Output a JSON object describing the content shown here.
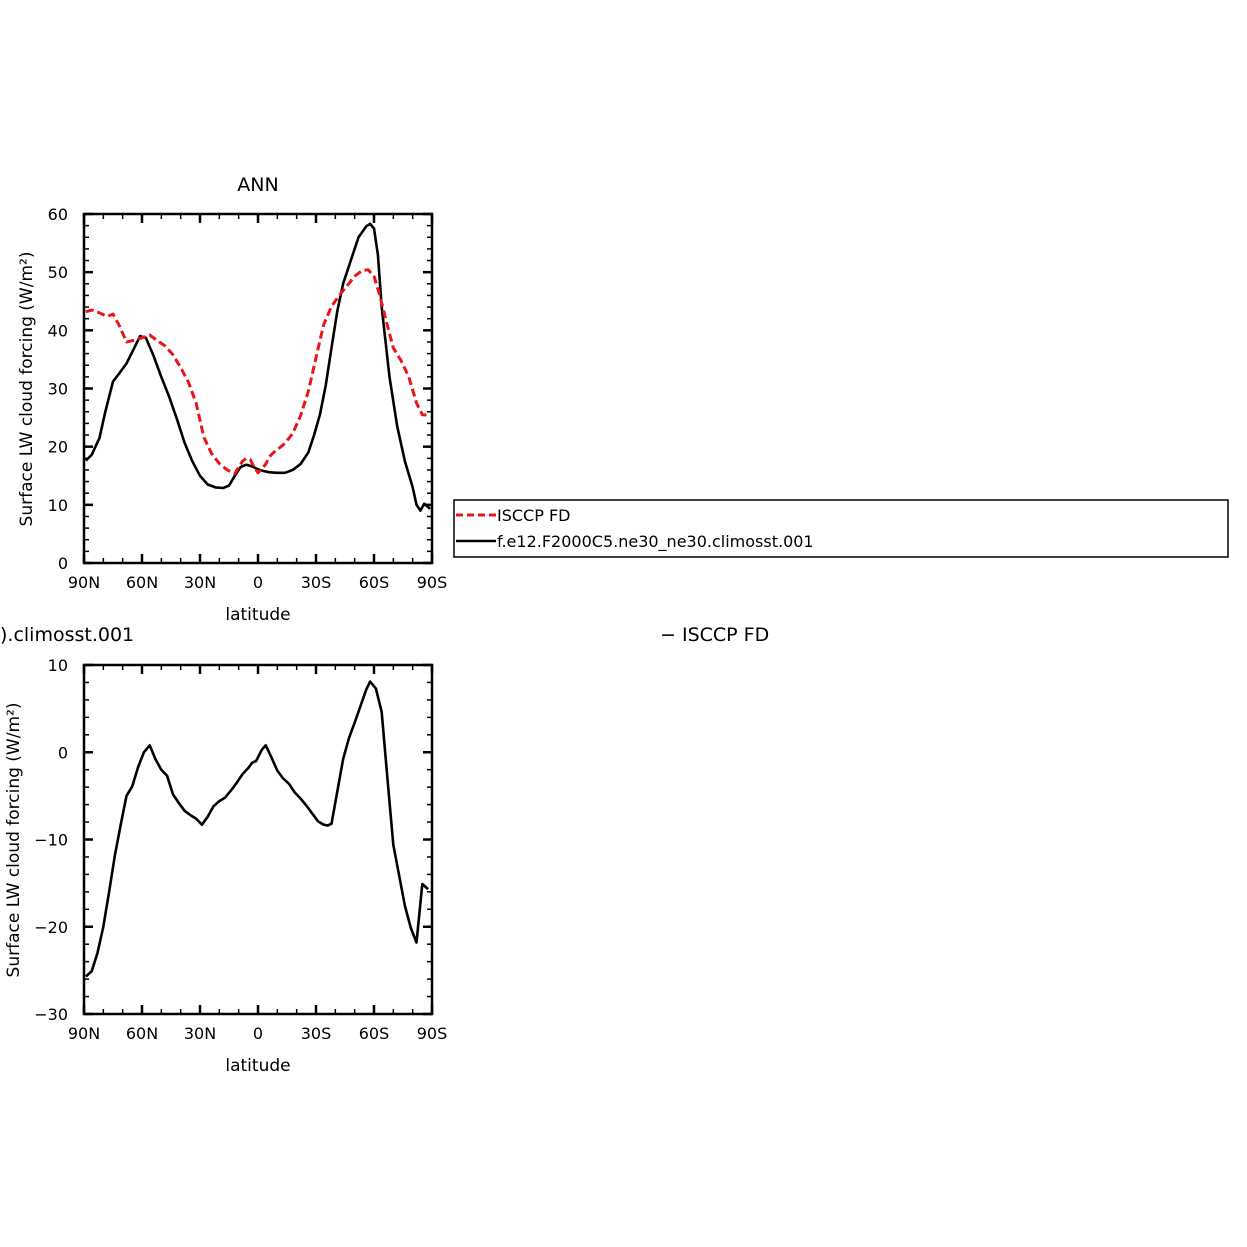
{
  "chart_data": [
    {
      "type": "line",
      "title": "ANN",
      "xlabel": "latitude",
      "ylabel": "Surface LW cloud forcing (W/m²)",
      "xlim": [
        -90,
        90
      ],
      "ylim": [
        0,
        60
      ],
      "x_tick_labels": [
        "90N",
        "60N",
        "30N",
        "0",
        "30S",
        "60S",
        "90S"
      ],
      "y_tick_labels": [
        "0",
        "10",
        "20",
        "30",
        "40",
        "50",
        "60"
      ],
      "grid": false,
      "legend_position": "right",
      "series": [
        {
          "name": "ISCCP FD",
          "color": "#e8161b",
          "dash": "dashed",
          "x": [
            -89,
            -86,
            -82,
            -78,
            -75,
            -72,
            -68,
            -64,
            -60,
            -56,
            -52,
            -48,
            -44,
            -40,
            -36,
            -32,
            -28,
            -24,
            -20,
            -16,
            -12,
            -8,
            -6,
            -4,
            -2,
            0,
            2,
            4,
            6,
            8,
            10,
            14,
            18,
            22,
            26,
            30,
            34,
            38,
            42,
            46,
            50,
            54,
            57,
            60,
            63,
            66,
            70,
            74,
            78,
            82,
            85,
            89
          ],
          "y": [
            43.2,
            43.5,
            43.0,
            42.4,
            42.8,
            41.0,
            38.0,
            38.3,
            38.7,
            39.2,
            38.2,
            37.3,
            35.8,
            33.6,
            31.1,
            27.5,
            21.6,
            18.8,
            17.1,
            16.0,
            15.4,
            17.5,
            18.0,
            17.8,
            16.5,
            15.5,
            16.2,
            17.0,
            18.3,
            19.0,
            19.5,
            20.6,
            22.3,
            25.3,
            29.5,
            35.3,
            41.0,
            44.1,
            46.0,
            47.6,
            49.3,
            50.3,
            50.4,
            49.3,
            46.0,
            42.0,
            37.0,
            34.8,
            32.0,
            27.5,
            25.5,
            25.4
          ]
        },
        {
          "name": "f.e12.F2000C5.ne30_ne30.climosst.001",
          "color": "#000000",
          "dash": "solid",
          "x": [
            -89,
            -86,
            -82,
            -79,
            -75,
            -72,
            -68,
            -64,
            -61,
            -58,
            -54,
            -50,
            -46,
            -42,
            -38,
            -34,
            -30,
            -26,
            -22,
            -18,
            -15,
            -12,
            -9,
            -6,
            -3,
            0,
            3,
            6,
            10,
            14,
            18,
            22,
            26,
            29,
            32,
            35,
            38,
            41,
            44,
            48,
            52,
            56,
            58,
            60,
            62,
            64,
            68,
            72,
            76,
            80,
            82,
            84,
            86,
            89
          ],
          "y": [
            17.6,
            18.6,
            21.5,
            26.0,
            31.2,
            32.5,
            34.3,
            37.0,
            39.0,
            38.7,
            35.6,
            32.0,
            28.6,
            24.8,
            20.7,
            17.5,
            15.0,
            13.5,
            13.0,
            12.9,
            13.3,
            15.0,
            16.5,
            16.9,
            16.6,
            16.1,
            15.8,
            15.6,
            15.5,
            15.5,
            16.0,
            17.0,
            19.0,
            22.0,
            25.5,
            30.5,
            37.0,
            43.3,
            48.0,
            52.0,
            56.0,
            57.9,
            58.3,
            57.5,
            53.0,
            44.0,
            32.0,
            23.5,
            17.5,
            13.0,
            10.0,
            9.0,
            10.2,
            9.3
          ]
        }
      ]
    },
    {
      "type": "line",
      "title": ").climosst.001",
      "title_right": "− ISCCP FD",
      "xlabel": "latitude",
      "ylabel": "Surface LW cloud forcing (W/m²)",
      "xlim": [
        -90,
        90
      ],
      "ylim": [
        -30,
        10
      ],
      "x_tick_labels": [
        "90N",
        "60N",
        "30N",
        "0",
        "30S",
        "60S",
        "90S"
      ],
      "y_tick_labels": [
        "10",
        "0",
        "−10",
        "−20",
        "−30"
      ],
      "grid": false,
      "series": [
        {
          "name": "",
          "color": "#000000",
          "dash": "solid",
          "x": [
            -89,
            -86,
            -83,
            -80,
            -77,
            -74,
            -71,
            -68,
            -65,
            -62,
            -59,
            -56,
            -53,
            -50,
            -47,
            -44,
            -41,
            -38,
            -35,
            -32,
            -29,
            -26,
            -23,
            -20,
            -17,
            -14,
            -11,
            -8,
            -5,
            -3,
            -1,
            2,
            4,
            7,
            10,
            13,
            16,
            19,
            22,
            25,
            28,
            31,
            34,
            36,
            38,
            41,
            44,
            47,
            50,
            53,
            56,
            58,
            61,
            64,
            67,
            70,
            73,
            76,
            79,
            82,
            85,
            88
          ],
          "y": [
            -25.7,
            -25.1,
            -23.0,
            -20.0,
            -16.0,
            -11.8,
            -8.3,
            -5.0,
            -3.9,
            -1.7,
            0.0,
            0.8,
            -0.8,
            -2.0,
            -2.7,
            -4.8,
            -5.8,
            -6.7,
            -7.2,
            -7.6,
            -8.3,
            -7.4,
            -6.2,
            -5.6,
            -5.2,
            -4.4,
            -3.5,
            -2.5,
            -1.8,
            -1.2,
            -1.0,
            0.3,
            0.8,
            -0.6,
            -2.1,
            -3.0,
            -3.6,
            -4.6,
            -5.3,
            -6.1,
            -7.0,
            -7.9,
            -8.3,
            -8.4,
            -8.2,
            -4.5,
            -0.8,
            1.6,
            3.4,
            5.3,
            7.2,
            8.1,
            7.3,
            4.6,
            -3.1,
            -10.6,
            -14.1,
            -17.6,
            -20.1,
            -21.8,
            -15.1,
            -15.7
          ]
        }
      ]
    }
  ]
}
